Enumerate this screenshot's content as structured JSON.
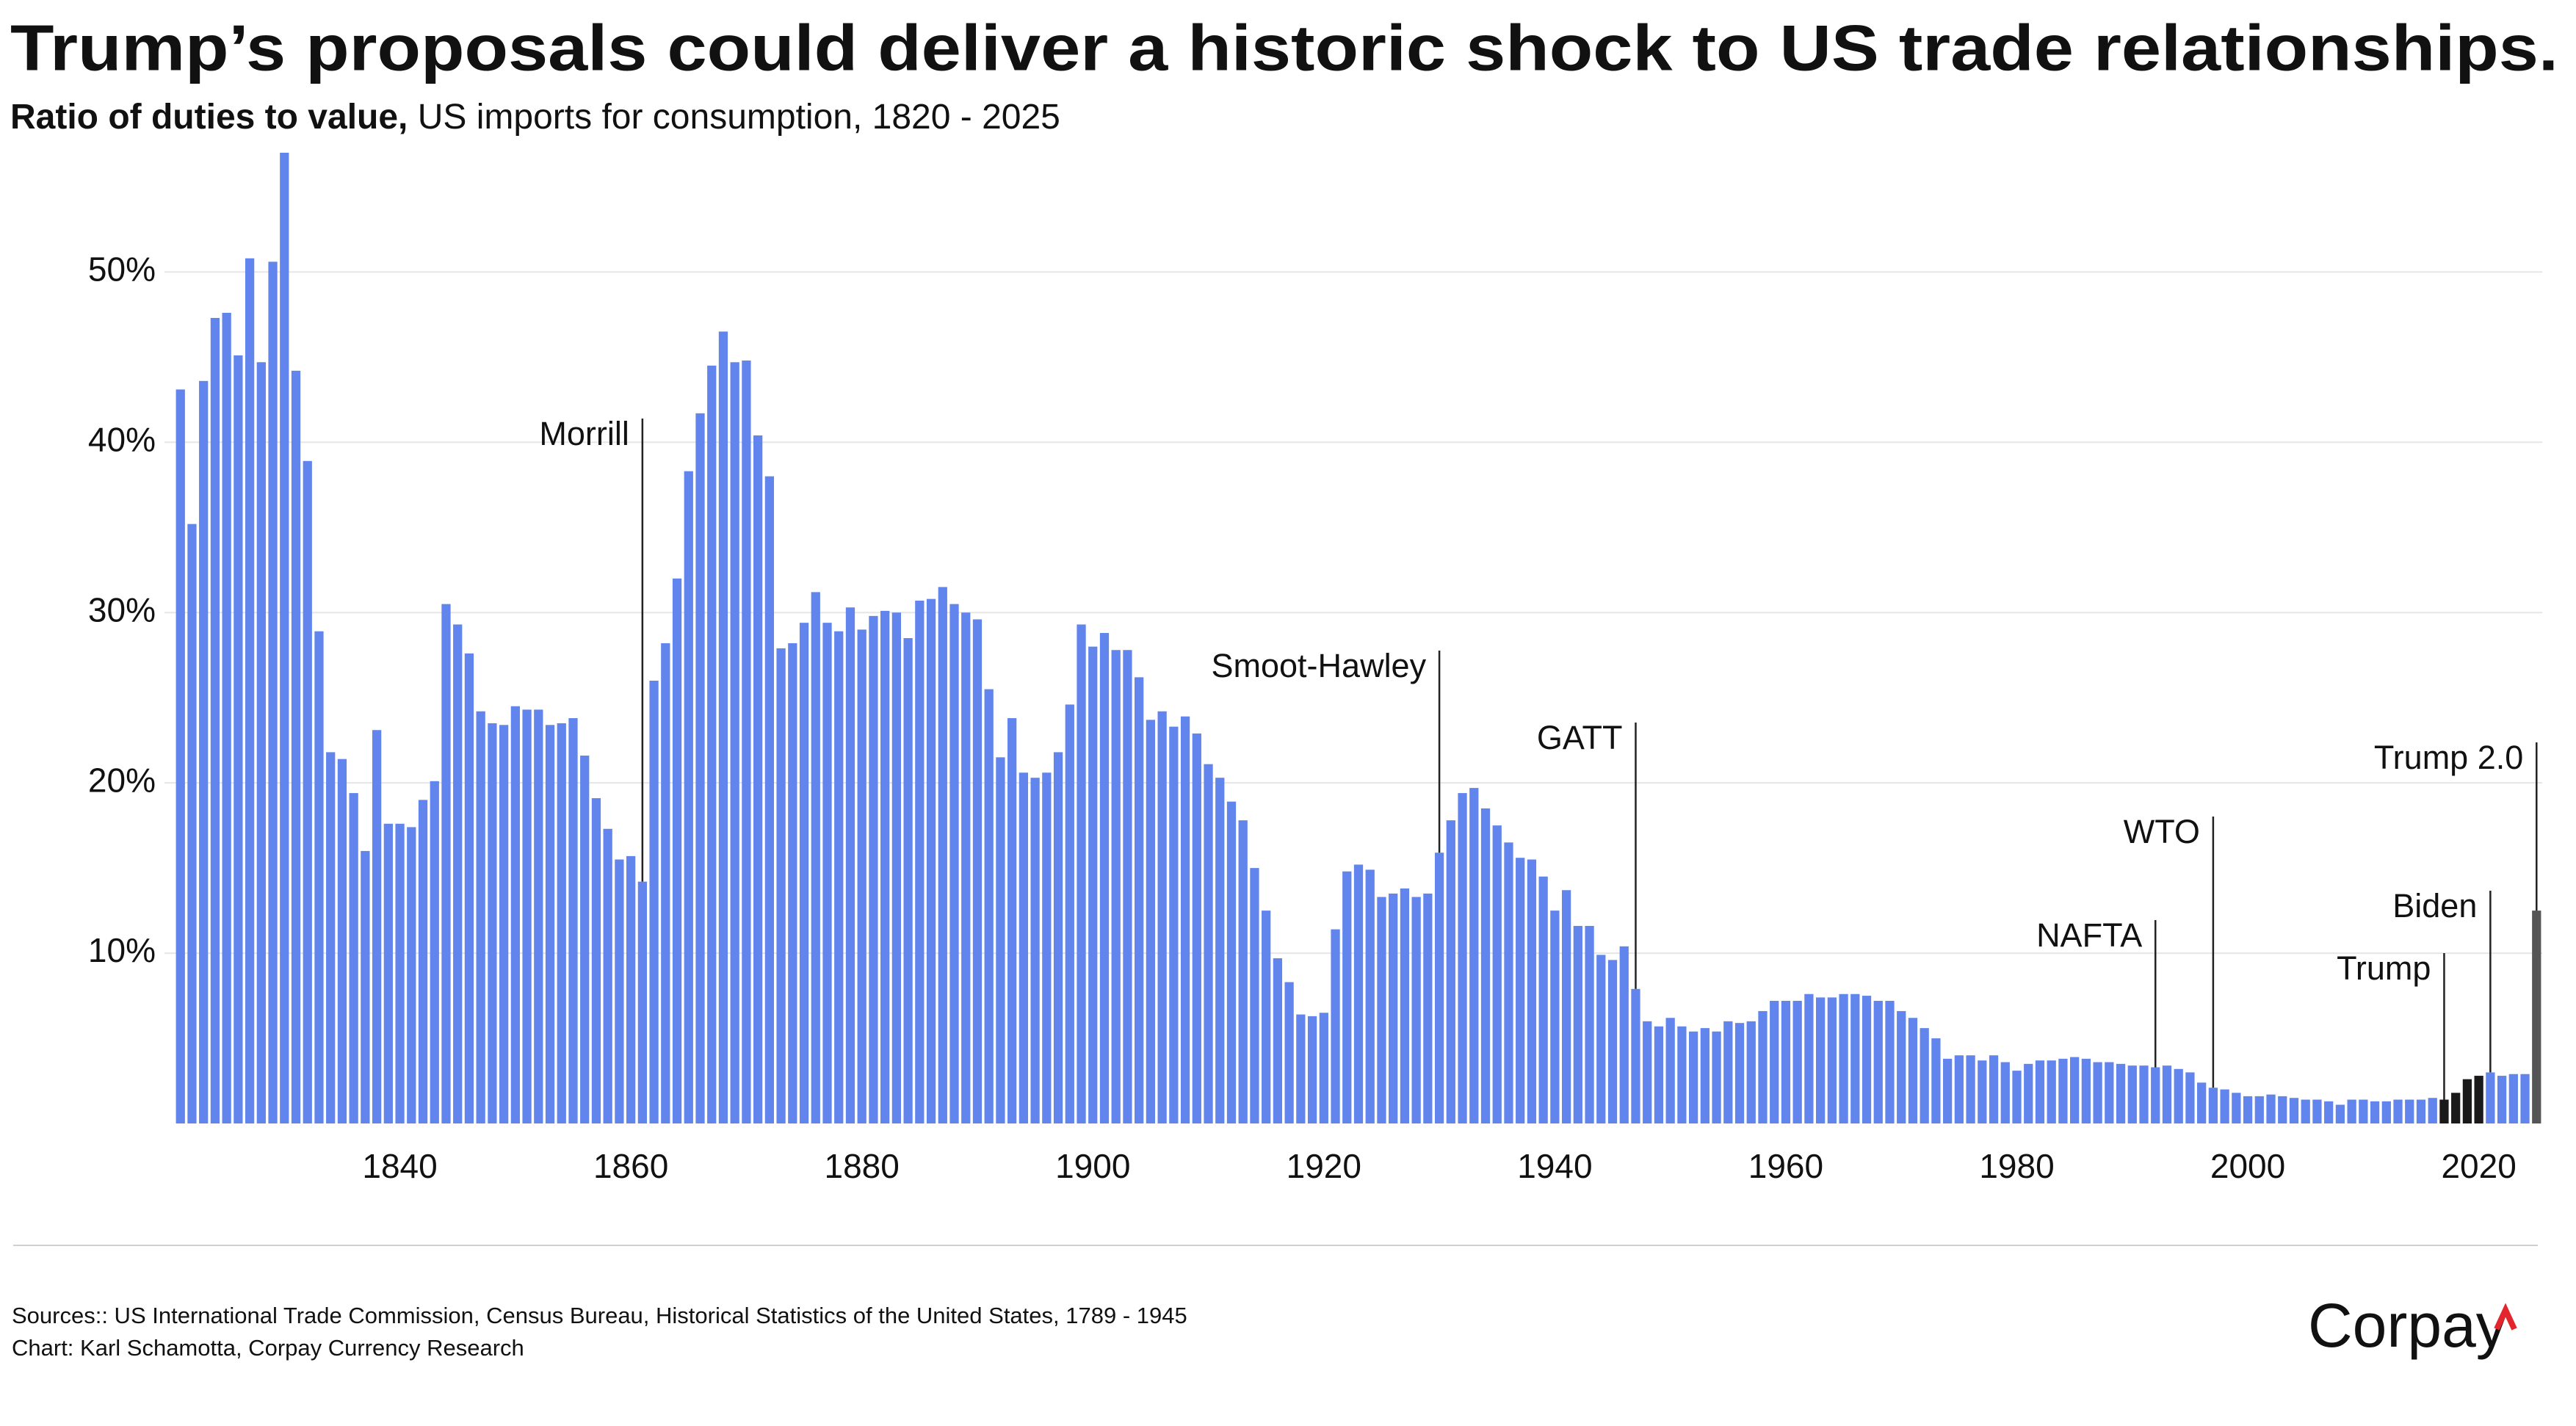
{
  "chart_data": {
    "type": "bar",
    "title": "Trump’s proposals could deliver a historic shock to US trade relationships.",
    "subtitle_bold": "Ratio of duties to value,",
    "subtitle": "US imports for consumption, 1820 - 2025",
    "x": [
      1821,
      1822,
      1823,
      1824,
      1825,
      1826,
      1827,
      1828,
      1829,
      1830,
      1831,
      1832,
      1833,
      1834,
      1835,
      1836,
      1837,
      1838,
      1839,
      1840,
      1841,
      1842,
      1843,
      1844,
      1845,
      1846,
      1847,
      1848,
      1849,
      1850,
      1851,
      1852,
      1853,
      1854,
      1855,
      1856,
      1857,
      1858,
      1859,
      1860,
      1861,
      1862,
      1863,
      1864,
      1865,
      1866,
      1867,
      1868,
      1869,
      1870,
      1871,
      1872,
      1873,
      1874,
      1875,
      1876,
      1877,
      1878,
      1879,
      1880,
      1881,
      1882,
      1883,
      1884,
      1885,
      1886,
      1887,
      1888,
      1889,
      1890,
      1891,
      1892,
      1893,
      1894,
      1895,
      1896,
      1897,
      1898,
      1899,
      1900,
      1901,
      1902,
      1903,
      1904,
      1905,
      1906,
      1907,
      1908,
      1909,
      1910,
      1911,
      1912,
      1913,
      1914,
      1915,
      1916,
      1917,
      1918,
      1919,
      1920,
      1921,
      1922,
      1923,
      1924,
      1925,
      1926,
      1927,
      1928,
      1929,
      1930,
      1931,
      1932,
      1933,
      1934,
      1935,
      1936,
      1937,
      1938,
      1939,
      1940,
      1941,
      1942,
      1943,
      1944,
      1945,
      1946,
      1947,
      1948,
      1949,
      1950,
      1951,
      1952,
      1953,
      1954,
      1955,
      1956,
      1957,
      1958,
      1959,
      1960,
      1961,
      1962,
      1963,
      1964,
      1965,
      1966,
      1967,
      1968,
      1969,
      1970,
      1971,
      1972,
      1973,
      1974,
      1975,
      1976,
      1977,
      1978,
      1979,
      1980,
      1981,
      1982,
      1983,
      1984,
      1985,
      1986,
      1987,
      1988,
      1989,
      1990,
      1991,
      1992,
      1993,
      1994,
      1995,
      1996,
      1997,
      1998,
      1999,
      2000,
      2001,
      2002,
      2003,
      2004,
      2005,
      2006,
      2007,
      2008,
      2009,
      2010,
      2011,
      2012,
      2013,
      2014,
      2015,
      2016,
      2017,
      2018,
      2019,
      2020,
      2021,
      2022,
      2023,
      2024,
      2025
    ],
    "values": [
      43.1,
      35.2,
      43.6,
      47.3,
      47.6,
      45.1,
      50.8,
      44.7,
      50.6,
      57.0,
      44.2,
      38.9,
      28.9,
      21.8,
      21.4,
      19.4,
      16.0,
      23.1,
      17.6,
      17.6,
      17.4,
      19.0,
      20.1,
      30.5,
      29.3,
      27.6,
      24.2,
      23.5,
      23.4,
      24.5,
      24.3,
      24.3,
      23.4,
      23.5,
      23.8,
      21.6,
      19.1,
      17.3,
      15.5,
      15.7,
      14.2,
      26.0,
      28.2,
      32.0,
      38.3,
      41.7,
      44.5,
      46.5,
      44.7,
      44.8,
      40.4,
      38.0,
      27.9,
      28.2,
      29.4,
      31.2,
      29.4,
      28.9,
      30.3,
      29.0,
      29.8,
      30.1,
      30.0,
      28.5,
      30.7,
      30.8,
      31.5,
      30.5,
      30.0,
      29.6,
      25.5,
      21.5,
      23.8,
      20.6,
      20.3,
      20.6,
      21.8,
      24.6,
      29.3,
      28.0,
      28.8,
      27.8,
      27.8,
      26.2,
      23.7,
      24.2,
      23.3,
      23.9,
      22.9,
      21.1,
      20.3,
      18.9,
      17.8,
      15.0,
      12.5,
      9.7,
      8.3,
      6.4,
      6.3,
      6.5,
      11.4,
      14.8,
      15.2,
      14.9,
      13.3,
      13.5,
      13.8,
      13.3,
      13.5,
      15.9,
      17.8,
      19.4,
      19.7,
      18.5,
      17.5,
      16.5,
      15.6,
      15.5,
      14.5,
      12.5,
      13.7,
      11.6,
      11.6,
      9.9,
      9.6,
      10.4,
      7.9,
      6.0,
      5.7,
      6.2,
      5.7,
      5.4,
      5.6,
      5.4,
      6.0,
      5.9,
      6.0,
      6.6,
      7.2,
      7.2,
      7.2,
      7.6,
      7.4,
      7.4,
      7.6,
      7.6,
      7.5,
      7.2,
      7.2,
      6.6,
      6.2,
      5.6,
      5.0,
      3.8,
      4.0,
      4.0,
      3.7,
      4.0,
      3.6,
      3.1,
      3.5,
      3.7,
      3.7,
      3.8,
      3.9,
      3.8,
      3.6,
      3.6,
      3.5,
      3.4,
      3.4,
      3.3,
      3.4,
      3.2,
      3.0,
      2.4,
      2.1,
      2.0,
      1.8,
      1.6,
      1.6,
      1.7,
      1.6,
      1.5,
      1.4,
      1.4,
      1.3,
      1.1,
      1.4,
      1.4,
      1.3,
      1.3,
      1.4,
      1.4,
      1.4,
      1.5,
      1.4,
      1.8,
      2.6,
      2.8,
      3.0,
      2.8,
      2.9,
      2.9,
      12.5
    ],
    "color": "#6185ec",
    "highlights": [
      {
        "years": [
          2017,
          2018,
          2019,
          2020
        ],
        "color": "#1a1a1a"
      },
      {
        "years": [
          2025
        ],
        "color": "#555555"
      }
    ],
    "xlim": [
      1820,
      2026
    ],
    "xticks": [
      1840,
      1860,
      1880,
      1900,
      1920,
      1940,
      1960,
      1980,
      2000,
      2020
    ],
    "ylim": [
      0,
      57
    ],
    "yticks": [
      {
        "value": 10,
        "label": "10%"
      },
      {
        "value": 20,
        "label": "20%"
      },
      {
        "value": 30,
        "label": "30%"
      },
      {
        "value": 40,
        "label": "40%"
      },
      {
        "value": 50,
        "label": "50%"
      }
    ],
    "grid": true,
    "annotations": [
      {
        "text": "Morrill",
        "year": 1861
      },
      {
        "text": "Smoot-Hawley",
        "year": 1930
      },
      {
        "text": "GATT",
        "year": 1947
      },
      {
        "text": "NAFTA",
        "year": 1992
      },
      {
        "text": "WTO",
        "year": 1997
      },
      {
        "text": "Trump",
        "year": 2017
      },
      {
        "text": "Biden",
        "year": 2021
      },
      {
        "text": "Trump 2.0",
        "year": 2025
      }
    ],
    "sources": "Sources:: US International Trade Commission, Census Bureau, Historical Statistics of the United States, 1789 - 1945",
    "credit": "Chart: Karl Schamotta, Corpay Currency Research",
    "logo": "Corpay"
  }
}
